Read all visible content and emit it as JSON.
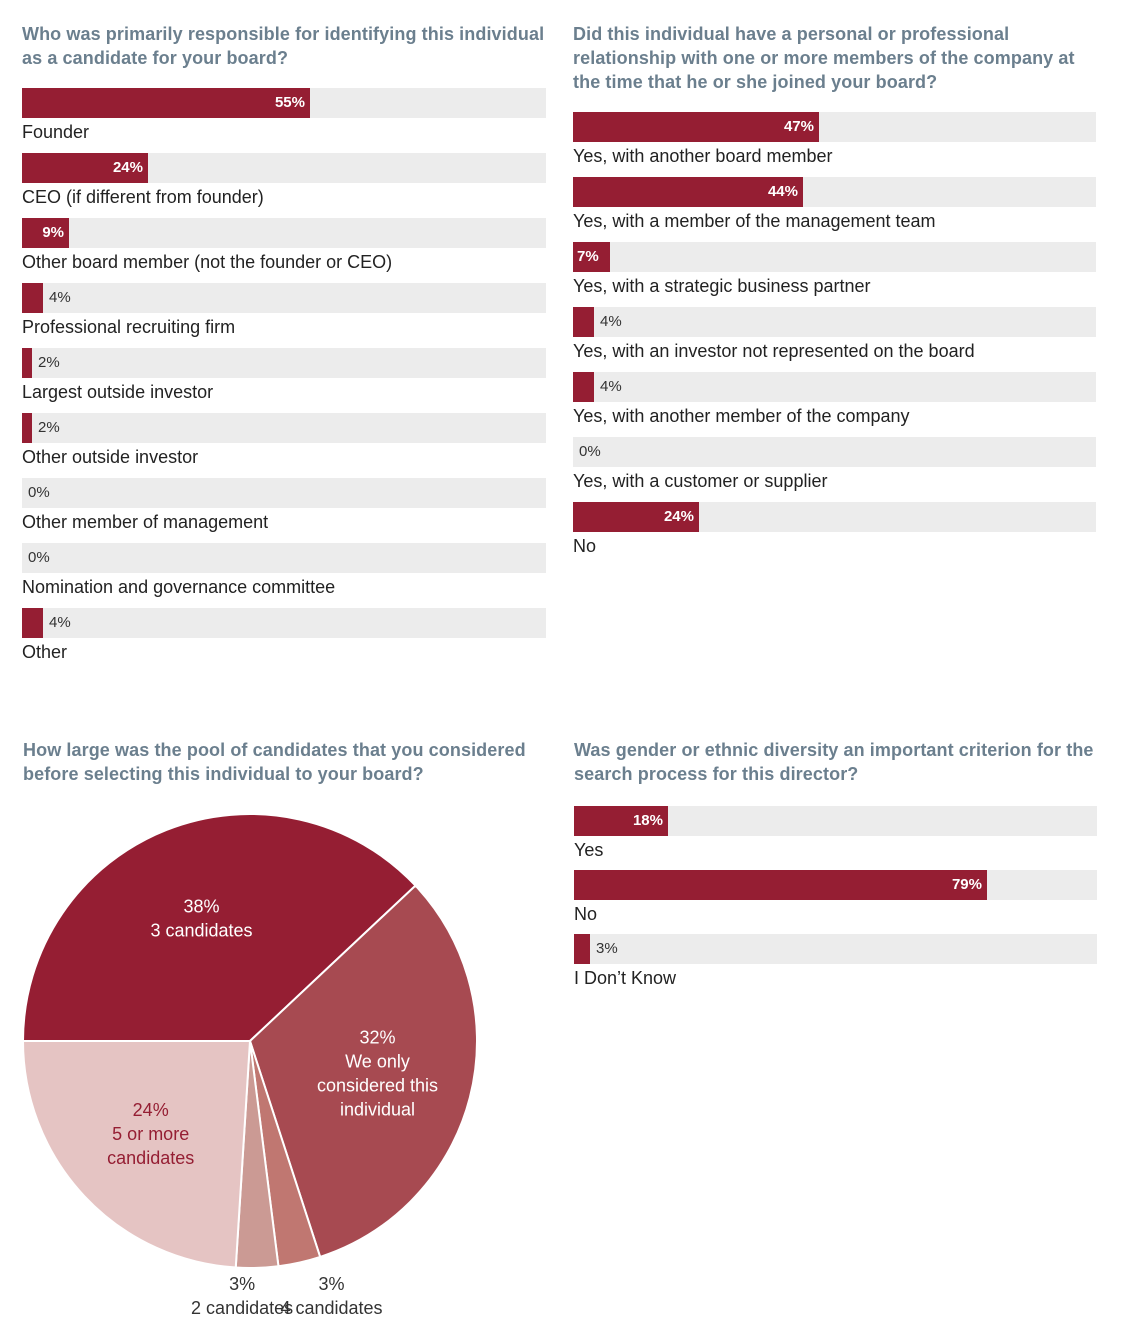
{
  "colors": {
    "bar": "#951e33",
    "track": "#ececec",
    "title": "#6b7f8e",
    "pie": [
      "#951e33",
      "#a74a51",
      "#c07771",
      "#cb9a94",
      "#e5c4c3"
    ]
  },
  "chart_data": [
    {
      "id": "responsible",
      "type": "bar",
      "orientation": "horizontal",
      "title": "Who was primarily responsible for identifying this individual as a candidate for your board?",
      "xlim": [
        0,
        100
      ],
      "categories": [
        "Founder",
        "CEO (if different from founder)",
        "Other board member (not the founder or CEO)",
        "Professional recruiting firm",
        "Largest outside investor",
        "Other outside investor",
        "Other member of management",
        "Nomination and governance committee",
        "Other"
      ],
      "values": [
        55,
        24,
        9,
        4,
        2,
        2,
        0,
        0,
        4
      ],
      "value_labels": [
        "55%",
        "24%",
        "9%",
        "4%",
        "2%",
        "2%",
        "0%",
        "0%",
        "4%"
      ]
    },
    {
      "id": "relationship",
      "type": "bar",
      "orientation": "horizontal",
      "title": "Did this individual have a personal or professional relationship with one or more members of the company at the time that he or she joined your board?",
      "xlim": [
        0,
        100
      ],
      "categories": [
        "Yes, with another board member",
        "Yes, with a member of the management team",
        "Yes, with a strategic business partner",
        "Yes, with an investor not represented on the board",
        "Yes, with another member of the company",
        "Yes, with a customer or supplier",
        "No"
      ],
      "values": [
        47,
        44,
        7,
        4,
        4,
        0,
        24
      ],
      "value_labels": [
        "47%",
        "44%",
        "7%",
        "4%",
        "4%",
        "0%",
        "24%"
      ]
    },
    {
      "id": "pool",
      "type": "pie",
      "title": "How large was the pool of candidates that you considered before selecting this individual to your board?",
      "slices": [
        {
          "label": "3 candidates",
          "value": 38,
          "value_label": "38%"
        },
        {
          "label": "We only considered this individual",
          "value": 32,
          "value_label": "32%"
        },
        {
          "label": "4 candidates",
          "value": 3,
          "value_label": "3%"
        },
        {
          "label": "2 candidates",
          "value": 3,
          "value_label": "3%"
        },
        {
          "label": "5 or more candidates",
          "value": 24,
          "value_label": "24%"
        }
      ]
    },
    {
      "id": "diversity",
      "type": "bar",
      "orientation": "horizontal",
      "title": "Was gender or ethnic diversity an important criterion for the search process for this director?",
      "xlim": [
        0,
        100
      ],
      "categories": [
        "Yes",
        "No",
        "I Don’t Know"
      ],
      "values": [
        18,
        79,
        3
      ],
      "value_labels": [
        "18%",
        "79%",
        "3%"
      ]
    }
  ]
}
